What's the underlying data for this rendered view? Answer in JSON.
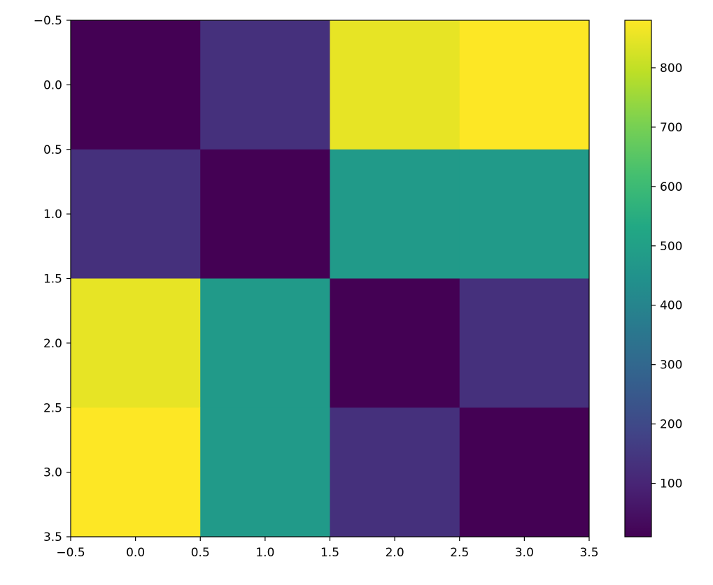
{
  "chart_data": {
    "type": "heatmap",
    "title": "",
    "xlabel": "",
    "ylabel": "",
    "rows": 4,
    "cols": 4,
    "values": [
      [
        0,
        130,
        850,
        880
      ],
      [
        130,
        0,
        480,
        480
      ],
      [
        850,
        480,
        0,
        130
      ],
      [
        880,
        480,
        130,
        0
      ]
    ],
    "xlim": [
      -0.5,
      3.5
    ],
    "ylim": [
      3.5,
      -0.5
    ],
    "x_ticks": [
      "-0.5",
      "0.0",
      "0.5",
      "1.0",
      "1.5",
      "2.0",
      "2.5",
      "3.0",
      "3.5"
    ],
    "y_ticks": [
      "-0.5",
      "0.0",
      "0.5",
      "1.0",
      "1.5",
      "2.0",
      "2.5",
      "3.0",
      "3.5"
    ],
    "x_tick_labels": [
      "−0.5",
      "0.0",
      "0.5",
      "1.0",
      "1.5",
      "2.0",
      "2.5",
      "3.0",
      "3.5"
    ],
    "y_tick_labels": [
      "−0.5",
      "0.0",
      "0.5",
      "1.0",
      "1.5",
      "2.0",
      "2.5",
      "3.0",
      "3.5"
    ],
    "colormap": "viridis",
    "colorbar": {
      "min": 10,
      "max": 880,
      "ticks": [
        100,
        200,
        300,
        400,
        500,
        600,
        700,
        800
      ],
      "tick_labels": [
        "100",
        "200",
        "300",
        "400",
        "500",
        "600",
        "700",
        "800"
      ]
    },
    "grid": false
  }
}
